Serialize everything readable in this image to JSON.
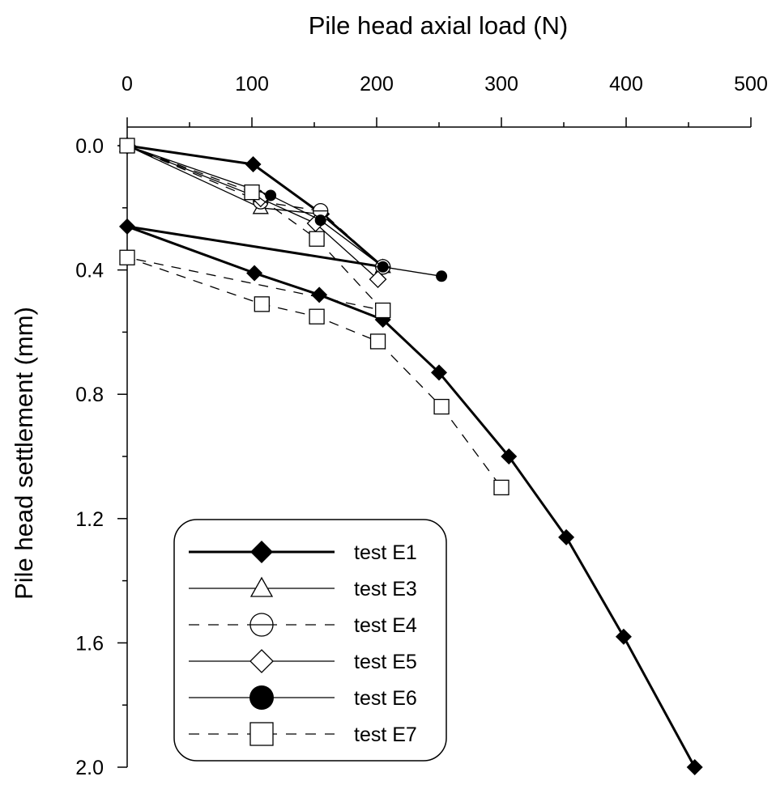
{
  "chart_data": {
    "type": "line",
    "xlabel": "Pile head axial load (N)",
    "ylabel": "Pile head settlement (mm)",
    "xlim": [
      0,
      500
    ],
    "ylim": [
      0,
      2.0
    ],
    "x_axis_position": "top",
    "y_axis_inverted": true,
    "x_ticks": [
      "0",
      "100",
      "200",
      "300",
      "400",
      "500"
    ],
    "y_ticks": [
      "0.0",
      "0.4",
      "0.8",
      "1.2",
      "1.6",
      "2.0"
    ],
    "grid": false,
    "legend_position": "bottom-left",
    "series": [
      {
        "name": "test E1",
        "marker": "diamond-filled",
        "line": "thick",
        "points": [
          [
            0,
            0
          ],
          [
            101,
            0.06
          ],
          [
            156,
            0.22
          ],
          [
            205,
            0.39
          ],
          [
            0,
            0.26
          ],
          [
            102,
            0.41
          ],
          [
            154,
            0.48
          ],
          [
            205,
            0.56
          ],
          [
            250,
            0.73
          ],
          [
            306,
            1.0
          ],
          [
            352,
            1.26
          ],
          [
            398,
            1.58
          ],
          [
            455,
            2.0
          ]
        ]
      },
      {
        "name": "test E3",
        "marker": "triangle-open",
        "line": "thin",
        "points": [
          [
            0,
            0
          ],
          [
            107,
            0.2
          ],
          [
            155,
            0.22
          ],
          [
            205,
            0.39
          ]
        ]
      },
      {
        "name": "test E4",
        "marker": "circle-open",
        "line": "dashed",
        "points": [
          [
            0,
            0
          ],
          [
            107,
            0.18
          ],
          [
            155,
            0.21
          ],
          [
            205,
            0.39
          ]
        ]
      },
      {
        "name": "test E5",
        "marker": "diamond-open",
        "line": "thin",
        "points": [
          [
            0,
            0
          ],
          [
            107,
            0.17
          ],
          [
            151,
            0.25
          ],
          [
            201,
            0.43
          ]
        ]
      },
      {
        "name": "test E6",
        "marker": "circle-filled",
        "line": "thin",
        "points": [
          [
            0,
            0
          ],
          [
            115,
            0.16
          ],
          [
            155,
            0.24
          ],
          [
            205,
            0.39
          ],
          [
            252,
            0.42
          ]
        ]
      },
      {
        "name": "test E7",
        "marker": "square-open",
        "line": "dashed",
        "points": [
          [
            0,
            0
          ],
          [
            100,
            0.15
          ],
          [
            152,
            0.3
          ],
          [
            205,
            0.53
          ],
          [
            0,
            0.36
          ],
          [
            108,
            0.51
          ],
          [
            152,
            0.55
          ],
          [
            201,
            0.63
          ],
          [
            252,
            0.84
          ],
          [
            300,
            1.1
          ]
        ]
      }
    ]
  }
}
